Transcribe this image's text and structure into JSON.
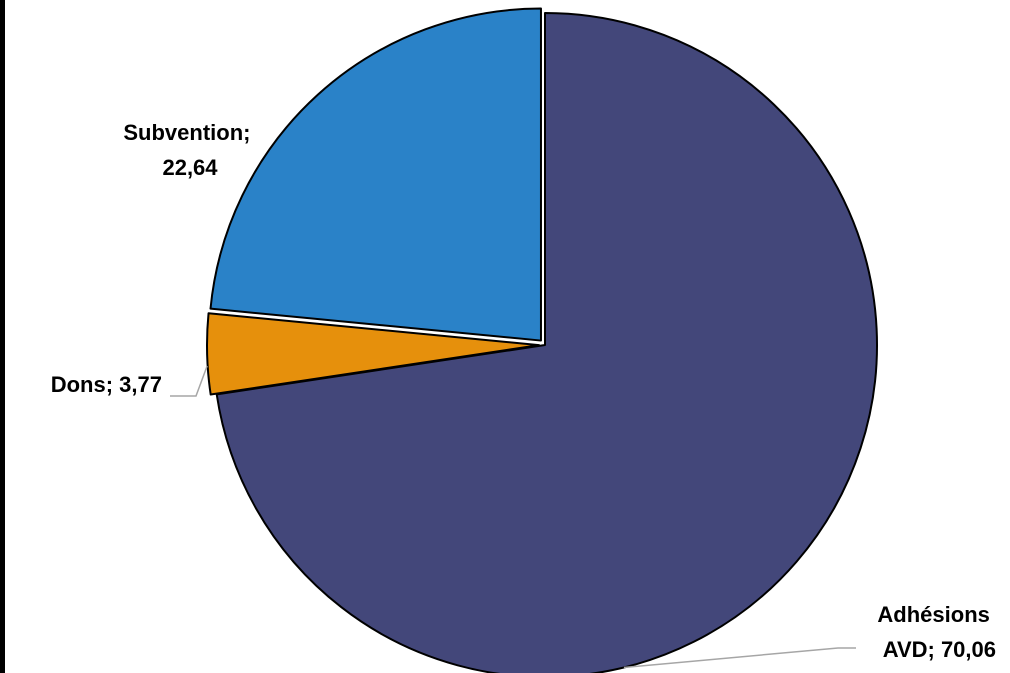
{
  "chart_data": {
    "type": "pie",
    "slices": [
      {
        "label": "Adhésions AVD",
        "value": 70.06,
        "display_value": "70,06",
        "color": "#43477a",
        "line1": "Adhésions",
        "line2": "AVD; 70,06"
      },
      {
        "label": "Dons",
        "value": 3.77,
        "display_value": "3,77",
        "color": "#e6900c",
        "line1": "Dons; 3,77",
        "line2": ""
      },
      {
        "label": "Subvention",
        "value": 22.64,
        "display_value": "22,64",
        "color": "#2a82c8",
        "line1": "Subvention;",
        "line2": "22,64"
      }
    ],
    "start_angle": "12 o'clock",
    "direction": "clockwise",
    "legend": "none",
    "explode": true
  }
}
